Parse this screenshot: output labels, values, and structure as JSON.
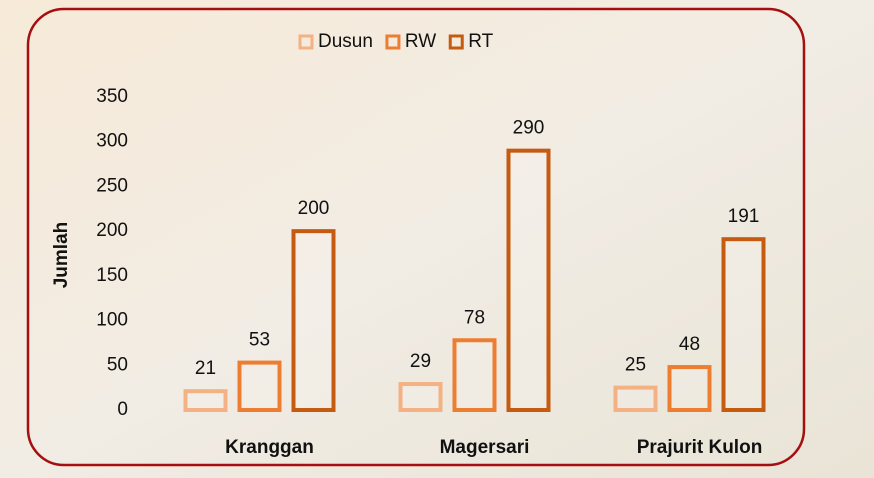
{
  "chart_data": {
    "type": "bar",
    "y_label": "Jumlah",
    "categories": [
      "Kranggan",
      "Magersari",
      "Prajurit Kulon"
    ],
    "series": [
      {
        "name": "Dusun",
        "color": "#f4b183",
        "values": [
          21,
          29,
          25
        ]
      },
      {
        "name": "RW",
        "color": "#ed7d31",
        "values": [
          53,
          78,
          48
        ]
      },
      {
        "name": "RT",
        "color": "#c55a11",
        "values": [
          200,
          290,
          191
        ]
      }
    ],
    "ylim": [
      0,
      350
    ],
    "yticks": [
      0,
      50,
      100,
      150,
      200,
      250,
      300,
      350
    ],
    "legend": "top",
    "grid": false
  }
}
